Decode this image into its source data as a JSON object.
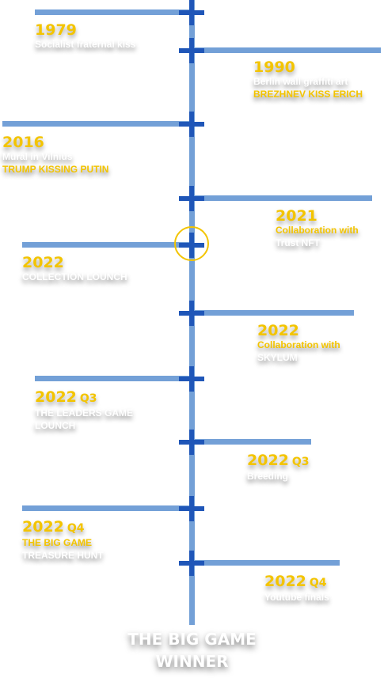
{
  "timeline": {
    "entries": [
      {
        "year": "1979",
        "quarter": "",
        "line1": "Socialist fraternal kiss",
        "line1_color": "white",
        "line2": "",
        "line2_color": "white"
      },
      {
        "year": "1990",
        "quarter": "",
        "line1": "Berlin wall graffiti art",
        "line1_color": "white",
        "line2": "BREZHNEV KISS ERICH",
        "line2_color": "gold"
      },
      {
        "year": "2016",
        "quarter": "",
        "line1": "Mural in Vilnius",
        "line1_color": "white",
        "line2": "TRUMP KISSING PUTIN",
        "line2_color": "gold"
      },
      {
        "year": "2021",
        "quarter": "",
        "line1": "Collaboration with",
        "line1_color": "gold",
        "line2": "Trust NFT",
        "line2_color": "white"
      },
      {
        "year": "2022",
        "quarter": "",
        "line1": "COLLECTION LOUNCH",
        "line1_color": "white",
        "line2": "",
        "line2_color": "white"
      },
      {
        "year": "2022",
        "quarter": "",
        "line1": "Collaboration with",
        "line1_color": "gold",
        "line2": "SKYLUM",
        "line2_color": "white"
      },
      {
        "year": "2022",
        "quarter": "Q3",
        "line1": "THE LEADERS GAME",
        "line1_color": "white",
        "line2": "LOUNCH",
        "line2_color": "white"
      },
      {
        "year": "2022",
        "quarter": "Q3",
        "line1": "Breeding",
        "line1_color": "white",
        "line2": "",
        "line2_color": "white"
      },
      {
        "year": "2022",
        "quarter": "Q4",
        "line1": "THE BIG GAME",
        "line1_color": "gold",
        "line2": "TREASURE HUNT",
        "line2_color": "white"
      },
      {
        "year": "2022",
        "quarter": "Q4",
        "line1": "Youtube finals",
        "line1_color": "white",
        "line2": "",
        "line2_color": "white"
      }
    ],
    "final_line1": "THE BIG GAME",
    "final_line2": "WINNER"
  },
  "colors": {
    "line": "#5b8fd0",
    "marker": "#1f56b8",
    "accent": "#f3c400",
    "text": "#ffffff"
  }
}
